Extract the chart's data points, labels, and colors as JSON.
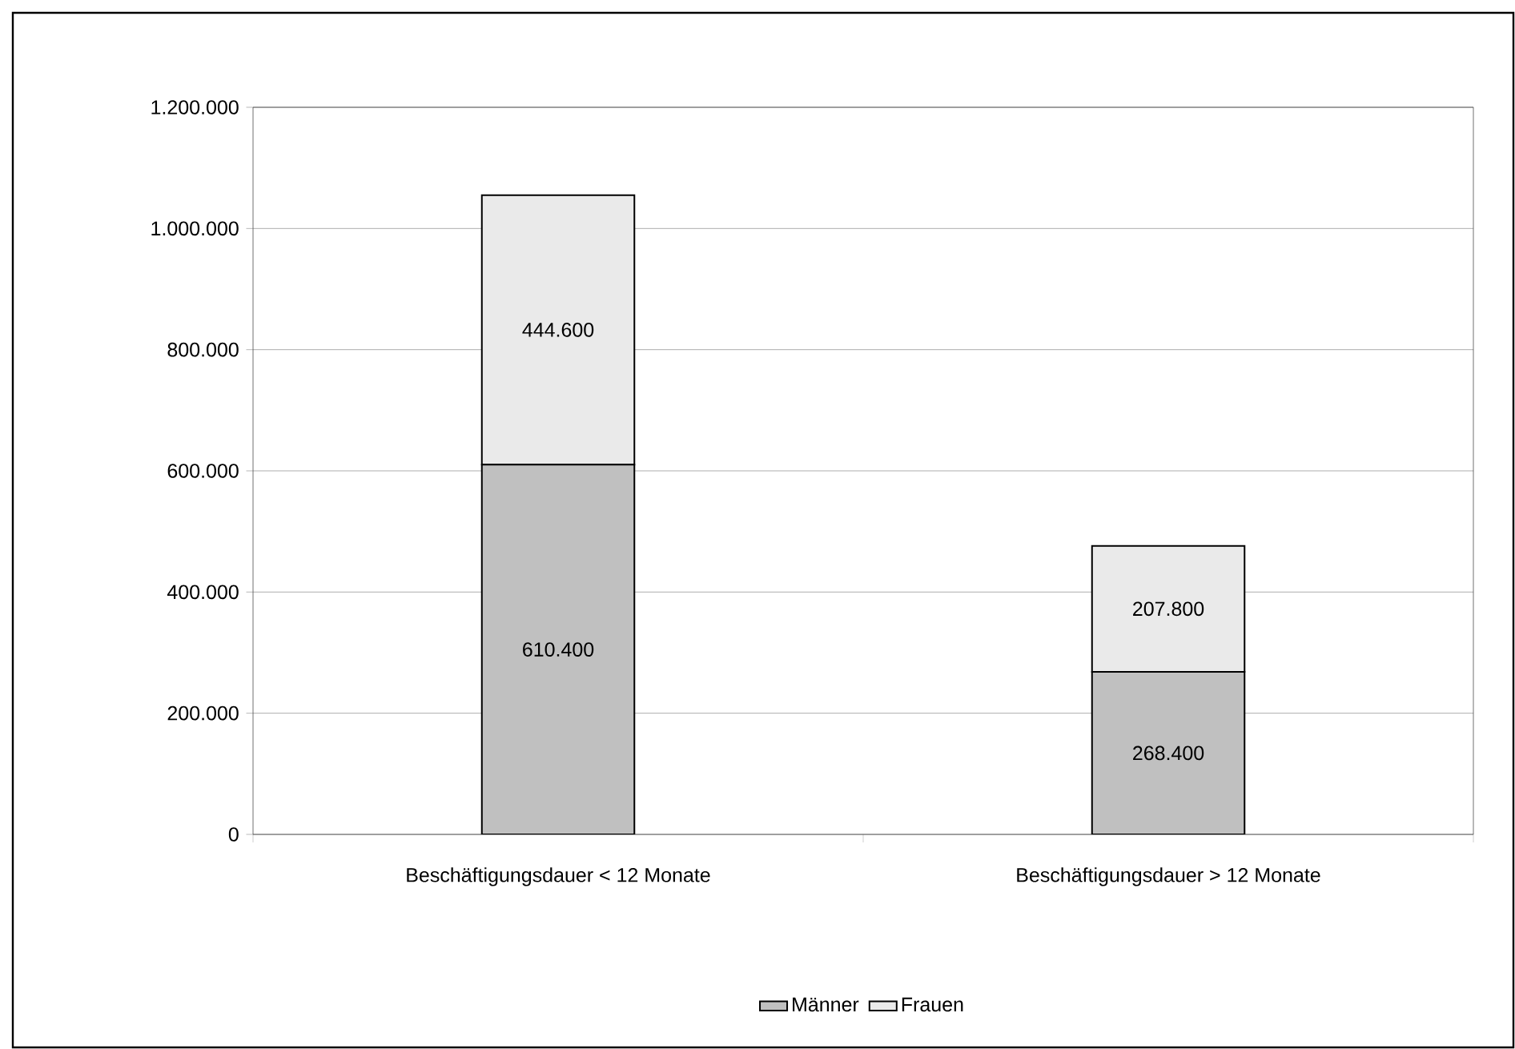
{
  "chart_data": {
    "type": "bar",
    "stacked": true,
    "categories": [
      "Beschäftigungsdauer < 12 Monate",
      "Beschäftigungsdauer > 12 Monate"
    ],
    "series": [
      {
        "name": "Männer",
        "color": "#c0c0c0",
        "values": [
          610400,
          268400
        ],
        "value_labels": [
          "610.400",
          "268.400"
        ]
      },
      {
        "name": "Frauen",
        "color": "#eaeaea",
        "values": [
          444600,
          207800
        ],
        "value_labels": [
          "444.600",
          "207.800"
        ]
      }
    ],
    "ylim": [
      0,
      1200000
    ],
    "yticks": [
      {
        "value": 0,
        "label": "0"
      },
      {
        "value": 200000,
        "label": "200.000"
      },
      {
        "value": 400000,
        "label": "400.000"
      },
      {
        "value": 600000,
        "label": "600.000"
      },
      {
        "value": 800000,
        "label": "800.000"
      },
      {
        "value": 1000000,
        "label": "1.000.000"
      },
      {
        "value": 1200000,
        "label": "1.200.000"
      }
    ],
    "grid": "y",
    "legend": "bottom"
  }
}
